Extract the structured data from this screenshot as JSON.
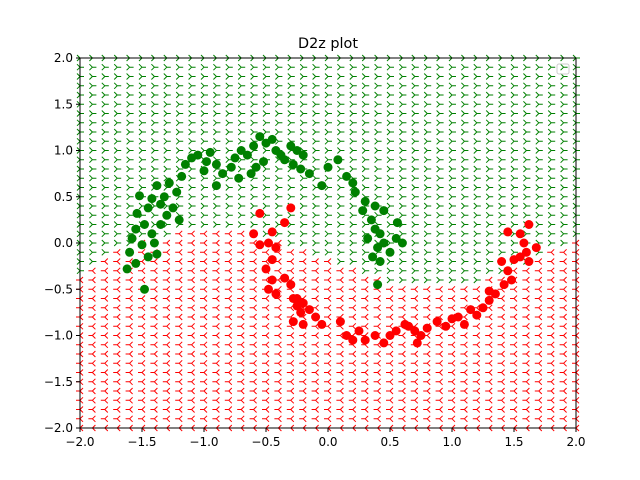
{
  "chart_data": {
    "type": "scatter",
    "title": "D2z plot",
    "xlabel": "",
    "ylabel": "",
    "xlim": [
      -2.0,
      2.0
    ],
    "ylim": [
      -2.0,
      2.0
    ],
    "xticks": [
      "−2.0",
      "−1.5",
      "−1.0",
      "−0.5",
      "0.0",
      "0.5",
      "1.0",
      "1.5",
      "2.0"
    ],
    "yticks": [
      "−2.0",
      "−1.5",
      "−1.0",
      "−0.5",
      "0.0",
      "0.5",
      "1.0",
      "1.5",
      "2.0"
    ],
    "grid": false,
    "legend": "top-right (empty)",
    "colors": {
      "class0": "#008000",
      "class1": "#ff0000"
    },
    "background_grid": {
      "step": 0.1,
      "marker": "tri_right (green) / tri_left (red)",
      "boundary_upper_moon": "class0 = green region above curved boundary"
    },
    "series": [
      {
        "name": "",
        "color": "#008000",
        "points": [
          [
            -1.52,
            0.51
          ],
          [
            -1.45,
            0.38
          ],
          [
            -1.54,
            0.32
          ],
          [
            -1.48,
            0.2
          ],
          [
            -1.55,
            0.15
          ],
          [
            -1.42,
            0.1
          ],
          [
            -1.58,
            0.05
          ],
          [
            -1.5,
            -0.02
          ],
          [
            -1.6,
            -0.1
          ],
          [
            -1.45,
            -0.15
          ],
          [
            -1.55,
            -0.22
          ],
          [
            -1.62,
            -0.28
          ],
          [
            -1.48,
            -0.5
          ],
          [
            -1.38,
            -0.12
          ],
          [
            -1.4,
            0.0
          ],
          [
            -1.35,
            0.2
          ],
          [
            -1.3,
            0.3
          ],
          [
            -1.25,
            0.38
          ],
          [
            -1.32,
            0.5
          ],
          [
            -1.38,
            0.62
          ],
          [
            -1.28,
            0.65
          ],
          [
            -1.22,
            0.55
          ],
          [
            -1.18,
            0.72
          ],
          [
            -1.1,
            0.92
          ],
          [
            -1.05,
            0.95
          ],
          [
            -0.98,
            0.88
          ],
          [
            -0.95,
            0.98
          ],
          [
            -0.9,
            0.85
          ],
          [
            -0.85,
            0.75
          ],
          [
            -0.9,
            0.62
          ],
          [
            -0.78,
            0.82
          ],
          [
            -0.75,
            0.92
          ],
          [
            -0.7,
            1.0
          ],
          [
            -0.65,
            0.95
          ],
          [
            -0.6,
            1.05
          ],
          [
            -0.55,
            1.15
          ],
          [
            -0.5,
            1.08
          ],
          [
            -0.45,
            1.12
          ],
          [
            -0.42,
            1.0
          ],
          [
            -0.38,
            0.95
          ],
          [
            -0.52,
            0.88
          ],
          [
            -0.58,
            0.82
          ],
          [
            -0.62,
            0.75
          ],
          [
            -0.3,
            1.05
          ],
          [
            -0.25,
            1.0
          ],
          [
            -0.2,
            0.95
          ],
          [
            -0.28,
            0.85
          ],
          [
            -0.22,
            0.8
          ],
          [
            -0.15,
            0.75
          ],
          [
            -0.05,
            0.62
          ],
          [
            0.0,
            0.82
          ],
          [
            0.08,
            0.9
          ],
          [
            0.15,
            0.72
          ],
          [
            0.2,
            0.65
          ],
          [
            0.22,
            0.55
          ],
          [
            0.3,
            0.45
          ],
          [
            0.28,
            0.35
          ],
          [
            0.35,
            0.25
          ],
          [
            0.38,
            0.15
          ],
          [
            0.42,
            0.1
          ],
          [
            0.45,
            0.0
          ],
          [
            0.4,
            -0.05
          ],
          [
            0.36,
            -0.15
          ],
          [
            0.42,
            -0.2
          ],
          [
            0.5,
            -0.1
          ],
          [
            0.55,
            0.05
          ],
          [
            0.6,
            0.0
          ],
          [
            0.56,
            0.22
          ],
          [
            0.45,
            0.35
          ],
          [
            0.38,
            0.4
          ],
          [
            0.4,
            -0.45
          ],
          [
            0.32,
            0.05
          ],
          [
            -1.35,
            0.42
          ],
          [
            -1.2,
            0.25
          ],
          [
            -1.42,
            0.48
          ],
          [
            -1.0,
            0.78
          ],
          [
            -1.15,
            0.85
          ],
          [
            -0.72,
            0.7
          ],
          [
            -0.35,
            0.9
          ]
        ]
      },
      {
        "name": "",
        "color": "#ff0000",
        "points": [
          [
            -0.55,
            0.32
          ],
          [
            -0.6,
            0.1
          ],
          [
            -0.55,
            -0.02
          ],
          [
            -0.48,
            0.0
          ],
          [
            -0.42,
            -0.05
          ],
          [
            -0.45,
            0.12
          ],
          [
            -0.35,
            0.22
          ],
          [
            -0.3,
            0.38
          ],
          [
            -0.45,
            -0.18
          ],
          [
            -0.5,
            -0.28
          ],
          [
            -0.45,
            -0.4
          ],
          [
            -0.48,
            -0.5
          ],
          [
            -0.42,
            -0.55
          ],
          [
            -0.35,
            -0.38
          ],
          [
            -0.3,
            -0.45
          ],
          [
            -0.28,
            -0.6
          ],
          [
            -0.25,
            -0.68
          ],
          [
            -0.2,
            -0.65
          ],
          [
            -0.22,
            -0.75
          ],
          [
            -0.15,
            -0.72
          ],
          [
            -0.1,
            -0.8
          ],
          [
            -0.05,
            -0.88
          ],
          [
            -0.2,
            -0.88
          ],
          [
            -0.28,
            -0.85
          ],
          [
            0.1,
            -0.85
          ],
          [
            0.15,
            -1.0
          ],
          [
            0.2,
            -1.05
          ],
          [
            0.25,
            -0.95
          ],
          [
            0.3,
            -1.05
          ],
          [
            0.38,
            -1.0
          ],
          [
            0.45,
            -1.08
          ],
          [
            0.5,
            -1.0
          ],
          [
            0.55,
            -0.95
          ],
          [
            0.62,
            -0.88
          ],
          [
            0.7,
            -0.95
          ],
          [
            0.75,
            -1.0
          ],
          [
            0.72,
            -1.08
          ],
          [
            0.8,
            -0.92
          ],
          [
            0.88,
            -0.85
          ],
          [
            0.95,
            -0.9
          ],
          [
            1.0,
            -0.82
          ],
          [
            1.05,
            -0.8
          ],
          [
            1.1,
            -0.88
          ],
          [
            1.15,
            -0.72
          ],
          [
            1.2,
            -0.78
          ],
          [
            1.25,
            -0.7
          ],
          [
            1.3,
            -0.62
          ],
          [
            1.35,
            -0.55
          ],
          [
            1.42,
            -0.45
          ],
          [
            1.48,
            -0.4
          ],
          [
            1.45,
            -0.3
          ],
          [
            1.5,
            -0.18
          ],
          [
            1.55,
            -0.15
          ],
          [
            1.6,
            -0.1
          ],
          [
            1.58,
            0.0
          ],
          [
            1.62,
            -0.2
          ],
          [
            1.68,
            -0.05
          ],
          [
            1.55,
            0.1
          ],
          [
            1.45,
            0.12
          ],
          [
            1.62,
            0.2
          ],
          [
            1.4,
            -0.2
          ],
          [
            1.3,
            -0.52
          ],
          [
            0.65,
            -0.9
          ],
          [
            -0.25,
            -0.6
          ]
        ]
      }
    ]
  }
}
